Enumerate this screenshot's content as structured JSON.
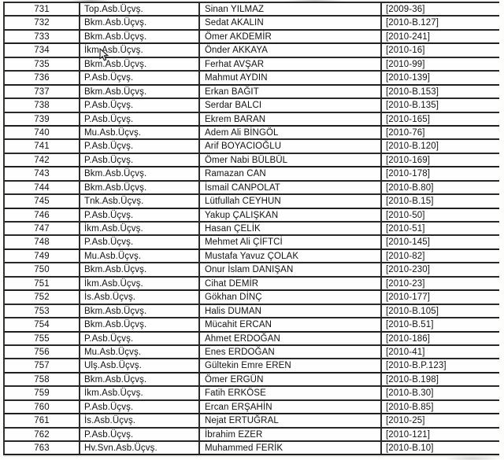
{
  "colors": {
    "table_border": "#2a2a2a",
    "text": "#121212",
    "page_background": "#fdfdfc"
  },
  "table": {
    "columns": [
      {
        "key": "no",
        "cell_name": "row-number-cell"
      },
      {
        "key": "rank",
        "cell_name": "rank-cell"
      },
      {
        "key": "name",
        "cell_name": "name-cell"
      },
      {
        "key": "code",
        "cell_name": "term-code-cell"
      }
    ],
    "rows": [
      {
        "no": "731",
        "rank": "Top.Asb.Üçvş.",
        "name": "Sinan YILMAZ",
        "code": "[2009-36]"
      },
      {
        "no": "732",
        "rank": "Bkm.Asb.Üçvş.",
        "name": "Sedat AKALIN",
        "code": "[2010-B.127]"
      },
      {
        "no": "733",
        "rank": "Bkm.Asb.Üçvş.",
        "name": "Ömer AKDEMİR",
        "code": "[2010-241]"
      },
      {
        "no": "734",
        "rank": "İkm.Asb.Üçvş.",
        "name": "Önder AKKAYA",
        "code": "[2010-16]"
      },
      {
        "no": "735",
        "rank": "Bkm.Asb.Üçvş.",
        "name": "Ferhat AVŞAR",
        "code": "[2010-99]"
      },
      {
        "no": "736",
        "rank": "P.Asb.Üçvş.",
        "name": "Mahmut AYDIN",
        "code": "[2010-139]"
      },
      {
        "no": "737",
        "rank": "Bkm.Asb.Üçvş.",
        "name": "Erkan BAĞIT",
        "code": "[2010-B.153]"
      },
      {
        "no": "738",
        "rank": "P.Asb.Üçvş.",
        "name": "Serdar BALCI",
        "code": "[2010-B.135]"
      },
      {
        "no": "739",
        "rank": "P.Asb.Üçvş.",
        "name": "Ekrem BARAN",
        "code": "[2010-165]"
      },
      {
        "no": "740",
        "rank": "Mu.Asb.Üçvş.",
        "name": "Adem Ali BİNGÖL",
        "code": "[2010-76]"
      },
      {
        "no": "741",
        "rank": "P.Asb.Üçvş.",
        "name": "Arif BOYACIOĞLU",
        "code": "[2010-B.120]"
      },
      {
        "no": "742",
        "rank": "P.Asb.Üçvş.",
        "name": "Ömer Nabi BÜLBÜL",
        "code": "[2010-169]"
      },
      {
        "no": "743",
        "rank": "Bkm.Asb.Üçvş.",
        "name": "Ramazan CAN",
        "code": "[2010-178]"
      },
      {
        "no": "744",
        "rank": "Bkm.Asb.Üçvş.",
        "name": "İsmail CANPOLAT",
        "code": "[2010-B.80]"
      },
      {
        "no": "745",
        "rank": "Tnk.Asb.Üçvş.",
        "name": "Lütfullah CEYHUN",
        "code": "[2010-B.15]"
      },
      {
        "no": "746",
        "rank": "P.Asb.Üçvş.",
        "name": "Yakup ÇALIŞKAN",
        "code": "[2010-50]"
      },
      {
        "no": "747",
        "rank": "İkm.Asb.Üçvş.",
        "name": "Hasan ÇELİK",
        "code": "[2010-51]"
      },
      {
        "no": "748",
        "rank": "P.Asb.Üçvş.",
        "name": "Mehmet Ali ÇİFTCİ",
        "code": "[2010-145]"
      },
      {
        "no": "749",
        "rank": "Mu.Asb.Üçvş.",
        "name": "Mustafa Yavuz ÇOLAK",
        "code": "[2010-82]"
      },
      {
        "no": "750",
        "rank": "Bkm.Asb.Üçvş.",
        "name": "Onur İslam DANIŞAN",
        "code": "[2010-230]"
      },
      {
        "no": "751",
        "rank": "İkm.Asb.Üçvş.",
        "name": "Cihat DEMİR",
        "code": "[2010-23]"
      },
      {
        "no": "752",
        "rank": "İs.Asb.Üçvş.",
        "name": "Gökhan DİNÇ",
        "code": "[2010-177]"
      },
      {
        "no": "753",
        "rank": "Bkm.Asb.Üçvş.",
        "name": "Halis DUMAN",
        "code": "[2010-B.105]"
      },
      {
        "no": "754",
        "rank": "Bkm.Asb.Üçvş.",
        "name": "Mücahit ERCAN",
        "code": "[2010-B.51]"
      },
      {
        "no": "755",
        "rank": "P.Asb.Üçvş.",
        "name": "Ahmet ERDOĞAN",
        "code": "[2010-186]"
      },
      {
        "no": "756",
        "rank": "Mu.Asb.Üçvş.",
        "name": "Enes ERDOĞAN",
        "code": "[2010-41]"
      },
      {
        "no": "757",
        "rank": "Ulş.Asb.Üçvş.",
        "name": "Gültekin Emre EREN",
        "code": "[2010-B.P.123]"
      },
      {
        "no": "758",
        "rank": "Bkm.Asb.Üçvş.",
        "name": "Ömer ERGÜN",
        "code": "[2010-B.198]"
      },
      {
        "no": "759",
        "rank": "İkm.Asb.Üçvş.",
        "name": "Fatih ERKÖSE",
        "code": "[2010-B.30]"
      },
      {
        "no": "760",
        "rank": "P.Asb.Üçvş.",
        "name": "Ercan ERŞAHİN",
        "code": "[2010-B.85]"
      },
      {
        "no": "761",
        "rank": "İs.Asb.Üçvş.",
        "name": "Nejat ERTUĞRAL",
        "code": "[2010-25]"
      },
      {
        "no": "762",
        "rank": "P.Asb.Üçvş.",
        "name": "İbrahim EZER",
        "code": "[2010-121]"
      },
      {
        "no": "763",
        "rank": "Hv.Svn.Asb.Üçvş.",
        "name": "Muhammed FERİK",
        "code": "[2010-B.10]"
      }
    ]
  },
  "cursor": {
    "icon": "mouse-pointer-icon",
    "over_row_no": "735"
  }
}
